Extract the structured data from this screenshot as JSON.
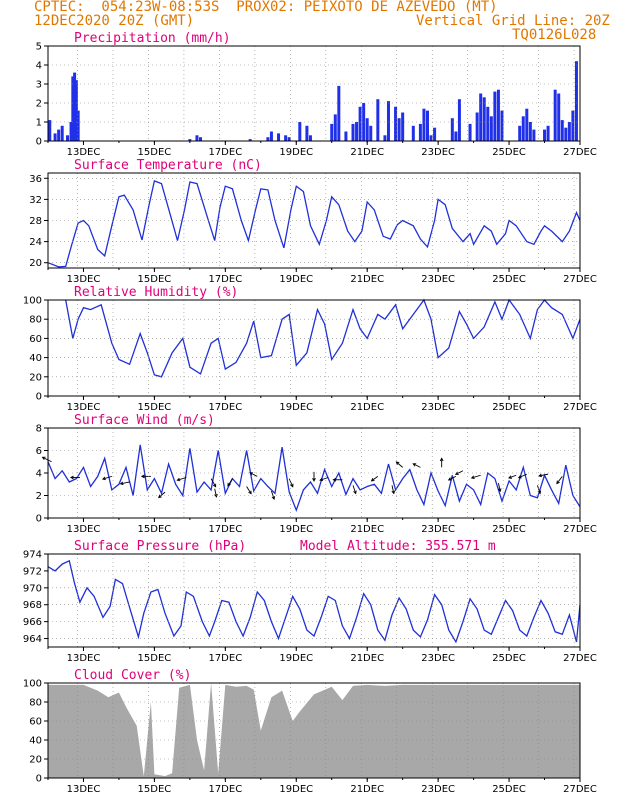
{
  "header": {
    "line1": "CPTEC:  054:23W-08:53S  PROX02: PEIXOTO DE AZEVEDO (MT)",
    "line2_left": "12DEC2020 20Z (GMT)",
    "line2_right": "Vertical Grid Line: 20Z",
    "line3_right": "TQ0126L028"
  },
  "colors": {
    "header": "#e07800",
    "title": "#e0007a",
    "line": "#2030d8",
    "bar": "#2030e8",
    "cloud": "#a8a8a8",
    "grid": "#888888"
  },
  "chart_data": [
    {
      "id": "precip",
      "type": "bar",
      "title": "Precipitation (mm/h)",
      "ylim": [
        0,
        5
      ],
      "yticks": [
        0,
        1,
        2,
        3,
        4,
        5
      ],
      "xlim": [
        12.0,
        27.0
      ],
      "xticks": [
        "13DEC",
        "15DEC",
        "17DEC",
        "19DEC",
        "21DEC",
        "23DEC",
        "25DEC",
        "27DEC"
      ],
      "x": [
        12.05,
        12.2,
        12.3,
        12.4,
        12.55,
        12.65,
        12.7,
        12.75,
        12.8,
        12.85,
        16.0,
        16.2,
        16.3,
        17.7,
        18.2,
        18.3,
        18.5,
        18.7,
        18.8,
        19.1,
        19.3,
        19.4,
        20.0,
        20.1,
        20.2,
        20.4,
        20.6,
        20.7,
        20.8,
        20.9,
        21.0,
        21.1,
        21.3,
        21.5,
        21.6,
        21.8,
        21.9,
        22.0,
        22.3,
        22.5,
        22.6,
        22.7,
        22.8,
        22.9,
        23.4,
        23.5,
        23.6,
        23.9,
        24.1,
        24.2,
        24.3,
        24.4,
        24.5,
        24.6,
        24.7,
        24.8,
        25.3,
        25.4,
        25.5,
        25.6,
        25.7,
        26.0,
        26.1,
        26.3,
        26.4,
        26.5,
        26.6,
        26.7,
        26.8,
        26.9
      ],
      "values": [
        1.1,
        0.4,
        0.6,
        0.8,
        0.3,
        1.0,
        3.4,
        3.6,
        3.2,
        1.6,
        0.1,
        0.3,
        0.2,
        0.1,
        0.2,
        0.5,
        0.4,
        0.3,
        0.2,
        1.0,
        0.8,
        0.3,
        0.9,
        1.4,
        2.9,
        0.5,
        0.9,
        1.0,
        1.8,
        2.0,
        1.2,
        0.8,
        2.2,
        0.3,
        2.1,
        1.8,
        1.2,
        1.5,
        0.8,
        0.9,
        1.7,
        1.6,
        0.3,
        0.7,
        1.2,
        0.5,
        2.2,
        0.9,
        1.5,
        2.5,
        2.3,
        1.8,
        1.3,
        2.6,
        2.7,
        1.6,
        0.8,
        1.3,
        1.7,
        1.0,
        0.6,
        0.6,
        0.8,
        2.7,
        2.5,
        1.1,
        0.7,
        1.0,
        1.6,
        4.2
      ]
    },
    {
      "id": "temp",
      "type": "line",
      "title": "Surface Temperature (nC)",
      "ylim": [
        19,
        37
      ],
      "yticks": [
        20,
        24,
        28,
        32,
        36
      ],
      "xlim": [
        12.0,
        27.0
      ],
      "xticks": [
        "13DEC",
        "15DEC",
        "17DEC",
        "19DEC",
        "21DEC",
        "23DEC",
        "25DEC",
        "27DEC"
      ],
      "x": [
        12.0,
        12.3,
        12.5,
        12.65,
        12.85,
        13.0,
        13.15,
        13.4,
        13.6,
        13.8,
        14.0,
        14.15,
        14.4,
        14.65,
        14.85,
        15.0,
        15.2,
        15.45,
        15.65,
        15.85,
        16.0,
        16.2,
        16.5,
        16.7,
        16.85,
        17.0,
        17.2,
        17.45,
        17.65,
        17.85,
        18.0,
        18.2,
        18.4,
        18.65,
        18.85,
        19.0,
        19.2,
        19.4,
        19.65,
        19.85,
        20.0,
        20.2,
        20.45,
        20.65,
        20.85,
        21.0,
        21.2,
        21.45,
        21.65,
        21.85,
        22.0,
        22.3,
        22.5,
        22.7,
        22.9,
        23.0,
        23.2,
        23.4,
        23.7,
        23.9,
        24.0,
        24.3,
        24.5,
        24.65,
        24.9,
        25.0,
        25.2,
        25.5,
        25.7,
        25.9,
        26.0,
        26.2,
        26.5,
        26.7,
        26.9,
        27.0
      ],
      "values": [
        20,
        19.2,
        19.3,
        23,
        27.5,
        28,
        27,
        22.5,
        21.3,
        27,
        32.5,
        32.8,
        30,
        24.3,
        31,
        35.5,
        35,
        29,
        24.2,
        30,
        35.3,
        35,
        28.5,
        24.2,
        30.5,
        34.5,
        34,
        28,
        24.2,
        30,
        34,
        33.8,
        28,
        22.8,
        30,
        34.5,
        33.5,
        27,
        23.5,
        28,
        32.5,
        31,
        26,
        24,
        26,
        31.5,
        30,
        25,
        24.5,
        27.2,
        28,
        27,
        24.5,
        23,
        28,
        32,
        31,
        26.5,
        24,
        25.5,
        23.5,
        27,
        26,
        23.5,
        25.5,
        28,
        27,
        24,
        23.5,
        26,
        27,
        26,
        24,
        26,
        29.5,
        28
      ]
    },
    {
      "id": "rh",
      "type": "line",
      "title": "Relative Humidity (%)",
      "ylim": [
        0,
        100
      ],
      "yticks": [
        0,
        20,
        40,
        60,
        80,
        100
      ],
      "xlim": [
        12.0,
        27.0
      ],
      "xticks": [
        "13DEC",
        "15DEC",
        "17DEC",
        "19DEC",
        "21DEC",
        "23DEC",
        "25DEC",
        "27DEC"
      ],
      "x": [
        12.5,
        12.7,
        12.85,
        13.0,
        13.2,
        13.5,
        13.8,
        14.0,
        14.3,
        14.6,
        14.8,
        15.0,
        15.2,
        15.5,
        15.8,
        16.0,
        16.3,
        16.6,
        16.8,
        17.0,
        17.3,
        17.6,
        17.8,
        18.0,
        18.3,
        18.6,
        18.8,
        19.0,
        19.3,
        19.6,
        19.8,
        20.0,
        20.3,
        20.6,
        20.8,
        21.0,
        21.3,
        21.5,
        21.8,
        22.0,
        22.3,
        22.6,
        22.8,
        23.0,
        23.3,
        23.6,
        23.8,
        24.0,
        24.3,
        24.6,
        24.8,
        25.0,
        25.3,
        25.6,
        25.8,
        26.0,
        26.2,
        26.5,
        26.8,
        27.0
      ],
      "values": [
        100,
        60,
        80,
        92,
        90,
        95,
        55,
        38,
        33,
        65,
        45,
        22,
        20,
        45,
        60,
        30,
        23,
        55,
        60,
        28,
        35,
        55,
        78,
        40,
        42,
        80,
        85,
        32,
        45,
        90,
        75,
        38,
        55,
        90,
        70,
        60,
        85,
        80,
        95,
        70,
        85,
        100,
        80,
        40,
        50,
        88,
        75,
        60,
        72,
        98,
        80,
        100,
        85,
        60,
        90,
        100,
        92,
        85,
        60,
        80
      ]
    },
    {
      "id": "wind",
      "type": "line",
      "title": "Surface Wind (m/s)",
      "ylim": [
        0,
        8
      ],
      "yticks": [
        0,
        2,
        4,
        6,
        8
      ],
      "xlim": [
        12.0,
        27.0
      ],
      "xticks": [
        "13DEC",
        "15DEC",
        "17DEC",
        "19DEC",
        "21DEC",
        "23DEC",
        "25DEC",
        "27DEC"
      ],
      "x": [
        12.0,
        12.2,
        12.4,
        12.6,
        12.8,
        13.0,
        13.2,
        13.4,
        13.6,
        13.8,
        14.0,
        14.2,
        14.4,
        14.6,
        14.8,
        15.0,
        15.2,
        15.4,
        15.6,
        15.8,
        16.0,
        16.2,
        16.4,
        16.6,
        16.8,
        17.0,
        17.2,
        17.4,
        17.6,
        17.8,
        18.0,
        18.2,
        18.4,
        18.6,
        18.8,
        19.0,
        19.2,
        19.4,
        19.6,
        19.8,
        20.0,
        20.2,
        20.4,
        20.6,
        20.8,
        21.0,
        21.2,
        21.4,
        21.6,
        21.8,
        22.0,
        22.2,
        22.4,
        22.6,
        22.8,
        23.0,
        23.2,
        23.4,
        23.6,
        23.8,
        24.0,
        24.2,
        24.4,
        24.6,
        24.8,
        25.0,
        25.2,
        25.4,
        25.6,
        25.8,
        26.0,
        26.2,
        26.4,
        26.6,
        26.8,
        27.0
      ],
      "values": [
        5,
        3.5,
        4.2,
        3.2,
        3.5,
        4.5,
        2.8,
        3.7,
        5.3,
        2.5,
        3,
        4.5,
        2,
        6.5,
        2.5,
        3.5,
        2.2,
        4.8,
        3,
        2,
        6.2,
        2.3,
        3.2,
        2.5,
        6,
        2.2,
        3.5,
        2.8,
        6,
        2.4,
        3.5,
        2.8,
        2.2,
        6.3,
        2.3,
        0.7,
        2.5,
        3.2,
        2.2,
        4.3,
        2.8,
        4,
        2.1,
        3.5,
        2.5,
        2.8,
        3,
        2.2,
        4.8,
        2.5,
        3.5,
        4.3,
        2.5,
        1.2,
        4,
        2.4,
        1.1,
        3.8,
        1.5,
        3,
        2.5,
        1.2,
        4,
        3.5,
        1.5,
        3.3,
        2.5,
        4.5,
        2,
        1.8,
        3.8,
        2.5,
        1.3,
        4.7,
        2,
        1
      ]
    },
    {
      "id": "press",
      "type": "line",
      "title": "Surface Pressure (hPa)",
      "annotation": "Model Altitude: 355.571  m",
      "ylim": [
        963,
        974
      ],
      "yticks": [
        964,
        966,
        968,
        970,
        972,
        974
      ],
      "xlim": [
        12.0,
        27.0
      ],
      "xticks": [
        "13DEC",
        "15DEC",
        "17DEC",
        "19DEC",
        "21DEC",
        "23DEC",
        "25DEC",
        "27DEC"
      ],
      "x": [
        12.0,
        12.2,
        12.4,
        12.6,
        12.75,
        12.9,
        13.1,
        13.3,
        13.55,
        13.75,
        13.9,
        14.1,
        14.35,
        14.55,
        14.7,
        14.9,
        15.1,
        15.3,
        15.55,
        15.75,
        15.9,
        16.1,
        16.35,
        16.55,
        16.7,
        16.9,
        17.1,
        17.3,
        17.5,
        17.7,
        17.9,
        18.1,
        18.3,
        18.5,
        18.7,
        18.9,
        19.1,
        19.3,
        19.5,
        19.7,
        19.9,
        20.1,
        20.3,
        20.5,
        20.7,
        20.9,
        21.1,
        21.3,
        21.5,
        21.7,
        21.9,
        22.1,
        22.3,
        22.5,
        22.7,
        22.9,
        23.1,
        23.3,
        23.5,
        23.7,
        23.9,
        24.1,
        24.3,
        24.5,
        24.7,
        24.9,
        25.1,
        25.3,
        25.5,
        25.7,
        25.9,
        26.1,
        26.3,
        26.5,
        26.7,
        26.9,
        27.0
      ],
      "values": [
        972.5,
        972,
        972.8,
        973.2,
        970.5,
        968.3,
        970,
        969,
        966.5,
        967.8,
        971,
        970.5,
        967,
        964.2,
        967,
        969.5,
        969.8,
        967,
        964.3,
        965.5,
        969.5,
        969,
        966,
        964.3,
        966,
        968.5,
        968.3,
        966,
        964.3,
        966.5,
        969.5,
        968.5,
        966,
        964,
        966.5,
        969,
        967.5,
        965,
        964.3,
        966.5,
        969,
        968.5,
        965.5,
        964,
        966.5,
        969.3,
        968,
        965,
        963.8,
        966.8,
        968.8,
        967.5,
        965,
        964.2,
        966.2,
        969.2,
        968,
        965,
        963.6,
        966,
        968.7,
        967.5,
        965,
        964.5,
        966.5,
        968.5,
        967.3,
        965,
        964.3,
        966.5,
        968.5,
        967,
        964.8,
        964.5,
        966.8,
        963.6,
        968
      ]
    },
    {
      "id": "cloud",
      "type": "area",
      "title": "Cloud Cover (%)",
      "ylim": [
        0,
        100
      ],
      "yticks": [
        0,
        20,
        40,
        60,
        80,
        100
      ],
      "xlim": [
        12.0,
        27.0
      ],
      "xticks": [
        "13DEC",
        "15DEC",
        "17DEC",
        "19DEC",
        "21DEC",
        "23DEC",
        "25DEC",
        "27DEC"
      ],
      "x": [
        12.0,
        13.0,
        13.4,
        13.7,
        14.0,
        14.2,
        14.5,
        14.7,
        14.9,
        15.0,
        15.3,
        15.5,
        15.7,
        16.0,
        16.2,
        16.4,
        16.6,
        16.8,
        17.0,
        17.3,
        17.6,
        17.8,
        18.0,
        18.3,
        18.6,
        18.9,
        19.1,
        19.5,
        20.0,
        20.3,
        20.6,
        21.0,
        21.5,
        22.0,
        23.0,
        24.0,
        25.0,
        26.0,
        27.0
      ],
      "values": [
        98,
        98,
        92,
        85,
        90,
        75,
        55,
        2,
        80,
        4,
        2,
        5,
        95,
        98,
        40,
        8,
        100,
        5,
        98,
        96,
        97,
        93,
        50,
        85,
        92,
        60,
        70,
        88,
        96,
        82,
        97,
        98,
        97,
        98,
        98,
        98,
        98,
        98,
        98
      ]
    }
  ]
}
